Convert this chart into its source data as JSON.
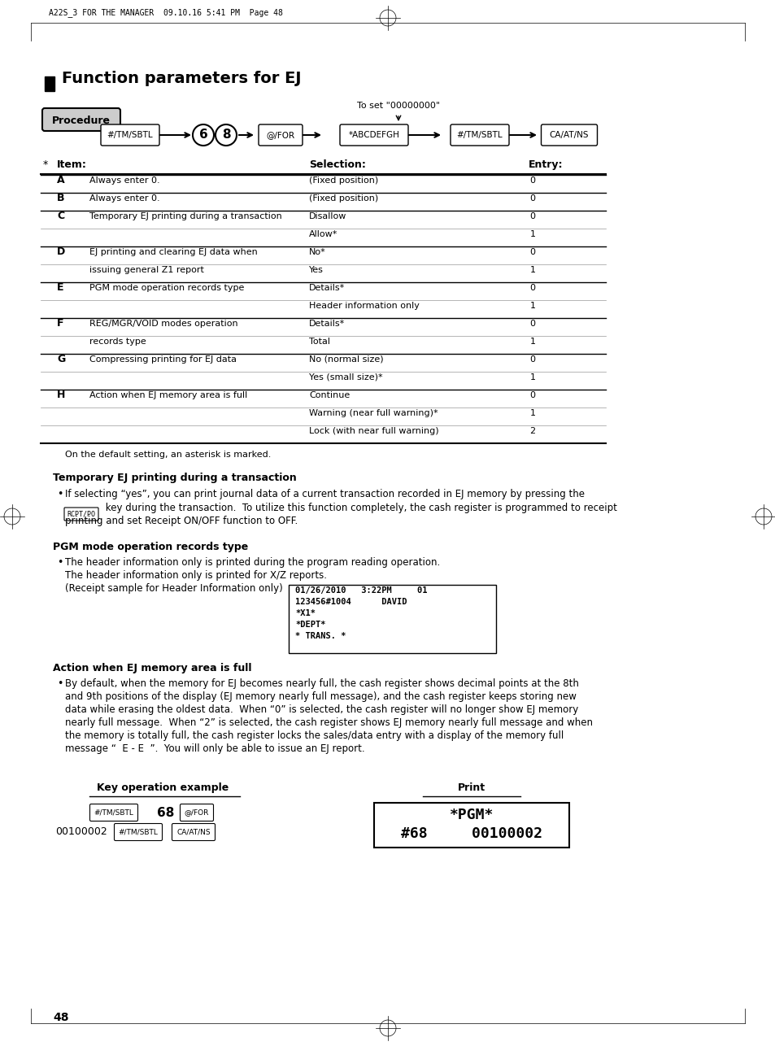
{
  "page_header": "A22S_3 FOR THE MANAGER  09.10.16 5:41 PM  Page 48",
  "title": "Function parameters for EJ",
  "procedure_label": "Procedure",
  "procedure_arrow_note": "To set \"00000000\"",
  "procedure_buttons": [
    "#/TM/SBTL",
    "6",
    "8",
    "@/FOR",
    "*ABCDEFGH",
    "#/TM/SBTL",
    "CA/AT/NS"
  ],
  "table_rows": [
    [
      "A",
      "Always enter 0.",
      "(Fixed position)",
      "0"
    ],
    [
      "B",
      "Always enter 0.",
      "(Fixed position)",
      "0"
    ],
    [
      "C",
      "Temporary EJ printing during a transaction",
      "Disallow",
      "0"
    ],
    [
      "",
      "",
      "Allow*",
      "1"
    ],
    [
      "D",
      "EJ printing and clearing EJ data when",
      "No*",
      "0"
    ],
    [
      "",
      "issuing general Z1 report",
      "Yes",
      "1"
    ],
    [
      "E",
      "PGM mode operation records type",
      "Details*",
      "0"
    ],
    [
      "",
      "",
      "Header information only",
      "1"
    ],
    [
      "F",
      "REG/MGR/VOID modes operation",
      "Details*",
      "0"
    ],
    [
      "",
      "records type",
      "Total",
      "1"
    ],
    [
      "G",
      "Compressing printing for EJ data",
      "No (normal size)",
      "0"
    ],
    [
      "",
      "",
      "Yes (small size)*",
      "1"
    ],
    [
      "H",
      "Action when EJ memory area is full",
      "Continue",
      "0"
    ],
    [
      "",
      "",
      "Warning (near full warning)*",
      "1"
    ],
    [
      "",
      "",
      "Lock (with near full warning)",
      "2"
    ]
  ],
  "footnote": "On the default setting, an asterisk is marked.",
  "section1_title": "Temporary EJ printing during a transaction",
  "section1_bullet": "If selecting “yes”, you can print journal data of a current transaction recorded in EJ memory by pressing the",
  "section1_key": "RCPT/PO",
  "section1_text2": " key during the transaction.  To utilize this function completely, the cash register is programmed to receipt",
  "section1_text3": "printing and set Receipt ON/OFF function to OFF.",
  "section2_title": "PGM mode operation records type",
  "section2_bullet": "The header information only is printed during the program reading operation.",
  "section2_text2": "The header information only is printed for X/Z reports.",
  "section2_text3": "(Receipt sample for Header Information only)",
  "receipt_lines": [
    "01/26/2010   3:22PM     01",
    "123456#1004      DAVID",
    "*X1*",
    "*DEPT*",
    "* TRANS. *"
  ],
  "section3_title": "Action when EJ memory area is full",
  "section3_bullet": "By default, when the memory for EJ becomes nearly full, the cash register shows decimal points at the 8th",
  "section3_text2": "and 9th positions of the display (EJ memory nearly full message), and the cash register keeps storing new",
  "section3_text3": "data while erasing the oldest data.  When “0” is selected, the cash register will no longer show EJ memory",
  "section3_text4": "nearly full message.  When “2” is selected, the cash register shows EJ memory nearly full message and when",
  "section3_text5": "the memory is totally full, the cash register locks the sales/data entry with a display of the memory full",
  "section3_text6": "message “  E - E  ”.  You will only be able to issue an EJ report.",
  "key_op_title": "Key operation example",
  "print_title": "Print",
  "print_line1": "*PGM*",
  "print_line2": "#68     00100002",
  "page_number": "48",
  "bg_color": "#ffffff",
  "text_color": "#000000"
}
